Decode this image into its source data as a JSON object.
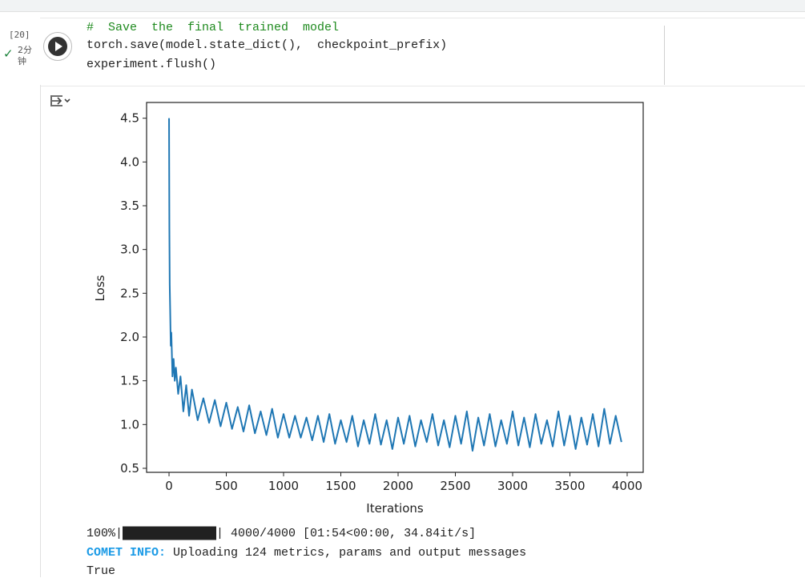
{
  "cell": {
    "execution_count": "[20]",
    "duration": "2分钟",
    "code": [
      "#  Save  the  final  trained  model",
      "torch.save(model.state_dict(),  checkpoint_prefix)",
      "experiment.flush()"
    ]
  },
  "chart_data": {
    "type": "line",
    "x_label": "Iterations",
    "y_label": "Loss",
    "series": [
      {
        "color": "#1f77b4",
        "x": [
          0,
          3,
          6,
          10,
          15,
          20,
          30,
          40,
          50,
          60,
          80,
          100,
          125,
          150,
          175,
          200,
          250,
          300,
          350,
          400,
          450,
          500,
          550,
          600,
          650,
          700,
          750,
          800,
          850,
          900,
          950,
          1000,
          1050,
          1100,
          1150,
          1200,
          1250,
          1300,
          1350,
          1400,
          1450,
          1500,
          1550,
          1600,
          1650,
          1700,
          1750,
          1800,
          1850,
          1900,
          1950,
          2000,
          2050,
          2100,
          2150,
          2200,
          2250,
          2300,
          2350,
          2400,
          2450,
          2500,
          2550,
          2600,
          2650,
          2700,
          2750,
          2800,
          2850,
          2900,
          2950,
          3000,
          3050,
          3100,
          3150,
          3200,
          3250,
          3300,
          3350,
          3400,
          3450,
          3500,
          3550,
          3600,
          3650,
          3700,
          3750,
          3800,
          3850,
          3900,
          3950
        ],
        "values": [
          4.5,
          3.25,
          2.6,
          2.3,
          1.9,
          2.05,
          1.55,
          1.75,
          1.5,
          1.65,
          1.35,
          1.55,
          1.15,
          1.45,
          1.1,
          1.4,
          1.05,
          1.3,
          1.02,
          1.28,
          0.98,
          1.25,
          0.95,
          1.2,
          0.92,
          1.22,
          0.9,
          1.15,
          0.88,
          1.18,
          0.85,
          1.12,
          0.85,
          1.1,
          0.85,
          1.08,
          0.82,
          1.1,
          0.8,
          1.12,
          0.78,
          1.05,
          0.8,
          1.1,
          0.75,
          1.05,
          0.78,
          1.12,
          0.77,
          1.05,
          0.72,
          1.08,
          0.78,
          1.1,
          0.75,
          1.05,
          0.8,
          1.12,
          0.76,
          1.05,
          0.74,
          1.1,
          0.78,
          1.15,
          0.7,
          1.08,
          0.76,
          1.12,
          0.75,
          1.05,
          0.78,
          1.15,
          0.76,
          1.08,
          0.74,
          1.12,
          0.78,
          1.05,
          0.75,
          1.15,
          0.76,
          1.1,
          0.72,
          1.08,
          0.77,
          1.12,
          0.75,
          1.18,
          0.78,
          1.1,
          0.8
        ]
      }
    ],
    "xlim": [
      -196,
      4140
    ],
    "ylim": [
      0.454,
      4.68
    ],
    "xticks": [
      0,
      500,
      1000,
      1500,
      2000,
      2500,
      3000,
      3500,
      4000
    ],
    "yticks": [
      0.5,
      {
        "value": 1,
        "label": "1.0"
      },
      1.5,
      {
        "value": 2,
        "label": "2.0"
      },
      2.5,
      {
        "value": 3,
        "label": "3.0"
      },
      3.5,
      {
        "value": 4,
        "label": "4.0"
      },
      4.5
    ]
  },
  "output": {
    "progress": "100%|█████████████| 4000/4000 [01:54<00:00, 34.84it/s]",
    "comet_label": "COMET INFO:",
    "comet_message": " Uploading 124 metrics, params and output messages",
    "result": "True"
  }
}
